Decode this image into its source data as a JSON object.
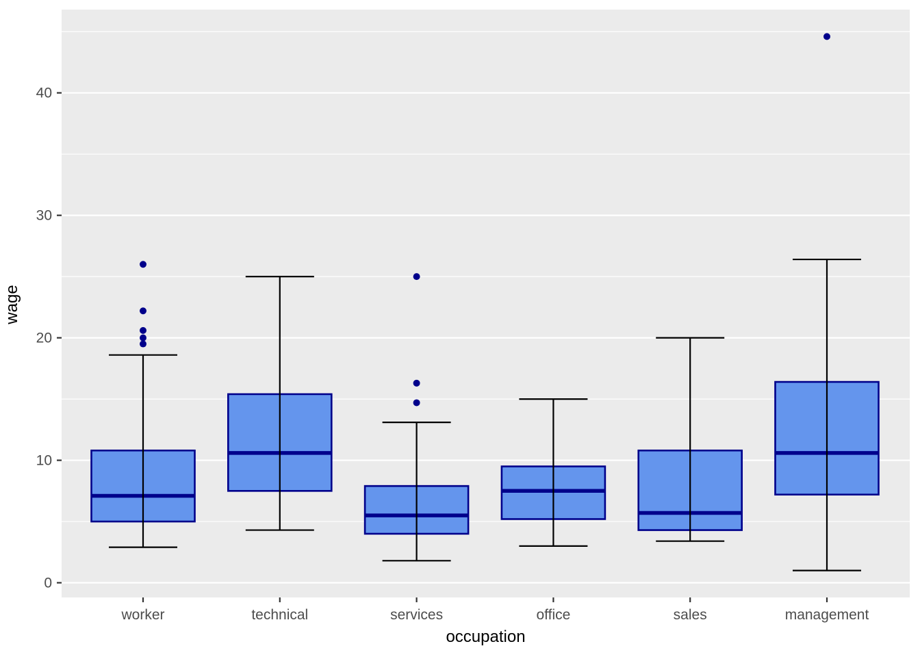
{
  "figure": {
    "background": "#FFFFFF",
    "panel_background": "#EBEBEB",
    "grid_color": "#FFFFFF",
    "tick_mark_color": "#333333",
    "tick_label_color": "#4D4D4D",
    "axis_title_color": "#000000",
    "box_fill": "#6495ED",
    "box_border": "#00008B",
    "median_color": "#00008B",
    "whisker_color": "#000000",
    "outlier_color": "#00008B"
  },
  "chart_data": {
    "type": "boxplot",
    "title": "",
    "xlabel": "occupation",
    "ylabel": "wage",
    "categories": [
      "worker",
      "technical",
      "services",
      "office",
      "sales",
      "management"
    ],
    "y_ticks": [
      0,
      10,
      20,
      30,
      40
    ],
    "y_minor_ticks": [
      5,
      15,
      25,
      35,
      45
    ],
    "ylim": [
      -1.2,
      46.8
    ],
    "grid": true,
    "legend": "none",
    "series": [
      {
        "category": "worker",
        "whisker_low": 2.9,
        "q1": 5.0,
        "median": 7.1,
        "q3": 10.8,
        "whisker_high": 18.6,
        "outliers": [
          19.5,
          20.0,
          20.6,
          22.2,
          26.0
        ]
      },
      {
        "category": "technical",
        "whisker_low": 4.3,
        "q1": 7.5,
        "median": 10.6,
        "q3": 15.4,
        "whisker_high": 25.0,
        "outliers": []
      },
      {
        "category": "services",
        "whisker_low": 1.8,
        "q1": 4.0,
        "median": 5.5,
        "q3": 7.9,
        "whisker_high": 13.1,
        "outliers": [
          14.7,
          16.3,
          25.0
        ]
      },
      {
        "category": "office",
        "whisker_low": 3.0,
        "q1": 5.2,
        "median": 7.5,
        "q3": 9.5,
        "whisker_high": 15.0,
        "outliers": []
      },
      {
        "category": "sales",
        "whisker_low": 3.4,
        "q1": 4.3,
        "median": 5.7,
        "q3": 10.8,
        "whisker_high": 20.0,
        "outliers": []
      },
      {
        "category": "management",
        "whisker_low": 1.0,
        "q1": 7.2,
        "median": 10.6,
        "q3": 16.4,
        "whisker_high": 26.4,
        "outliers": [
          44.6
        ]
      }
    ]
  }
}
